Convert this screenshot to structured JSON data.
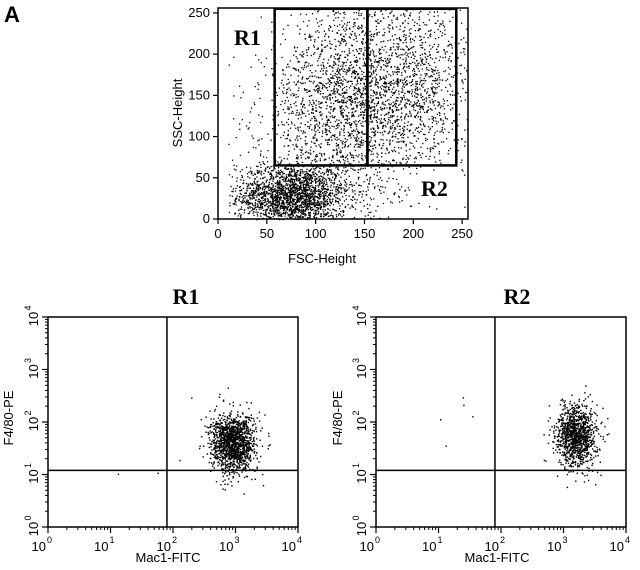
{
  "panel_label": "A",
  "chart_data": [
    {
      "type": "scatter",
      "xlabel": "FSC-Height",
      "ylabel": "SSC-Height",
      "xlim": [
        0,
        256
      ],
      "ylim": [
        0,
        256
      ],
      "x_ticks": [
        "0",
        "50",
        "100",
        "150",
        "200",
        "250"
      ],
      "y_ticks": [
        "0",
        "50",
        "100",
        "150",
        "200",
        "250"
      ],
      "grid": false,
      "gates": [
        {
          "label": "R1",
          "x": [
            58,
            153
          ],
          "y": [
            65,
            255
          ]
        },
        {
          "label": "R2",
          "x": [
            153,
            244
          ],
          "y": [
            65,
            255
          ]
        }
      ],
      "populations": [
        {
          "name": "",
          "n": 2200,
          "x_mean": 75,
          "x_sd": 28,
          "y_mean": 28,
          "y_sd": 20
        },
        {
          "name": "",
          "n": 2300,
          "x_mean": 135,
          "x_sd": 45,
          "y_mean": 140,
          "y_sd": 60
        },
        {
          "name": "",
          "n": 900,
          "x_mean": 200,
          "x_sd": 35,
          "y_mean": 170,
          "y_sd": 55
        }
      ]
    },
    {
      "type": "scatter",
      "title": "R1",
      "xlabel": "Mac1-FITC",
      "ylabel": "F4/80-PE",
      "scale": "log",
      "xlim": [
        1,
        10000
      ],
      "ylim": [
        1,
        10000
      ],
      "tick_base": "10",
      "tick_exponents": [
        "0",
        "1",
        "2",
        "3",
        "4"
      ],
      "quadrant_lines": {
        "x": 80,
        "y": 12
      },
      "populations": [
        {
          "name": "",
          "n": 1400,
          "x_log_mean": 2.95,
          "x_log_sd": 0.18,
          "y_log_mean": 1.6,
          "y_log_sd": 0.28
        }
      ]
    },
    {
      "type": "scatter",
      "title": "R2",
      "xlabel": "Mac1-FITC",
      "ylabel": "F4/80-PE",
      "scale": "log",
      "xlim": [
        1,
        10000
      ],
      "ylim": [
        1,
        10000
      ],
      "tick_base": "10",
      "tick_exponents": [
        "0",
        "1",
        "2",
        "3",
        "4"
      ],
      "quadrant_lines": {
        "x": 80,
        "y": 12
      },
      "populations": [
        {
          "name": "",
          "n": 1100,
          "x_log_mean": 3.2,
          "x_log_sd": 0.16,
          "y_log_mean": 1.75,
          "y_log_sd": 0.3
        }
      ]
    }
  ]
}
